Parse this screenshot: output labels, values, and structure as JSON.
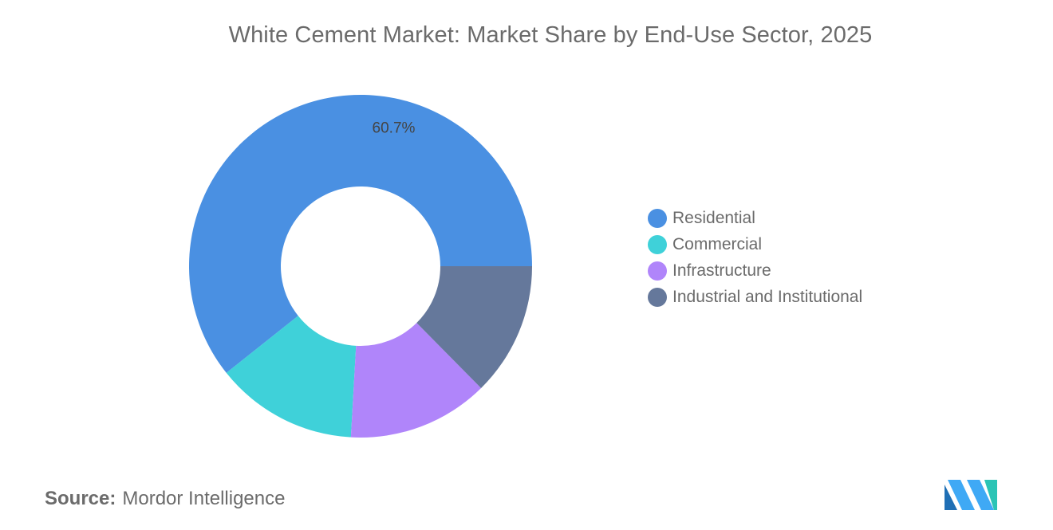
{
  "chart_data": {
    "type": "pie",
    "subtype": "donut",
    "title": "White Cement Market: Market Share by End-Use Sector, 2025",
    "categories": [
      "Residential",
      "Commercial",
      "Infrastructure",
      "Industrial and Institutional"
    ],
    "values": [
      60.7,
      13.4,
      13.3,
      12.6
    ],
    "colors": [
      "#4a90e2",
      "#3fd1d9",
      "#b085fa",
      "#65789b"
    ],
    "data_labels": [
      "60.7%",
      "",
      "",
      ""
    ],
    "legend_position": "right"
  },
  "source": {
    "label": "Source:",
    "text": "Mordor Intelligence"
  },
  "logo": {
    "icon": "mordor-intelligence-logo-icon",
    "colors": [
      "#3fa9f5",
      "#1f6fb5",
      "#2bc4b5"
    ]
  }
}
